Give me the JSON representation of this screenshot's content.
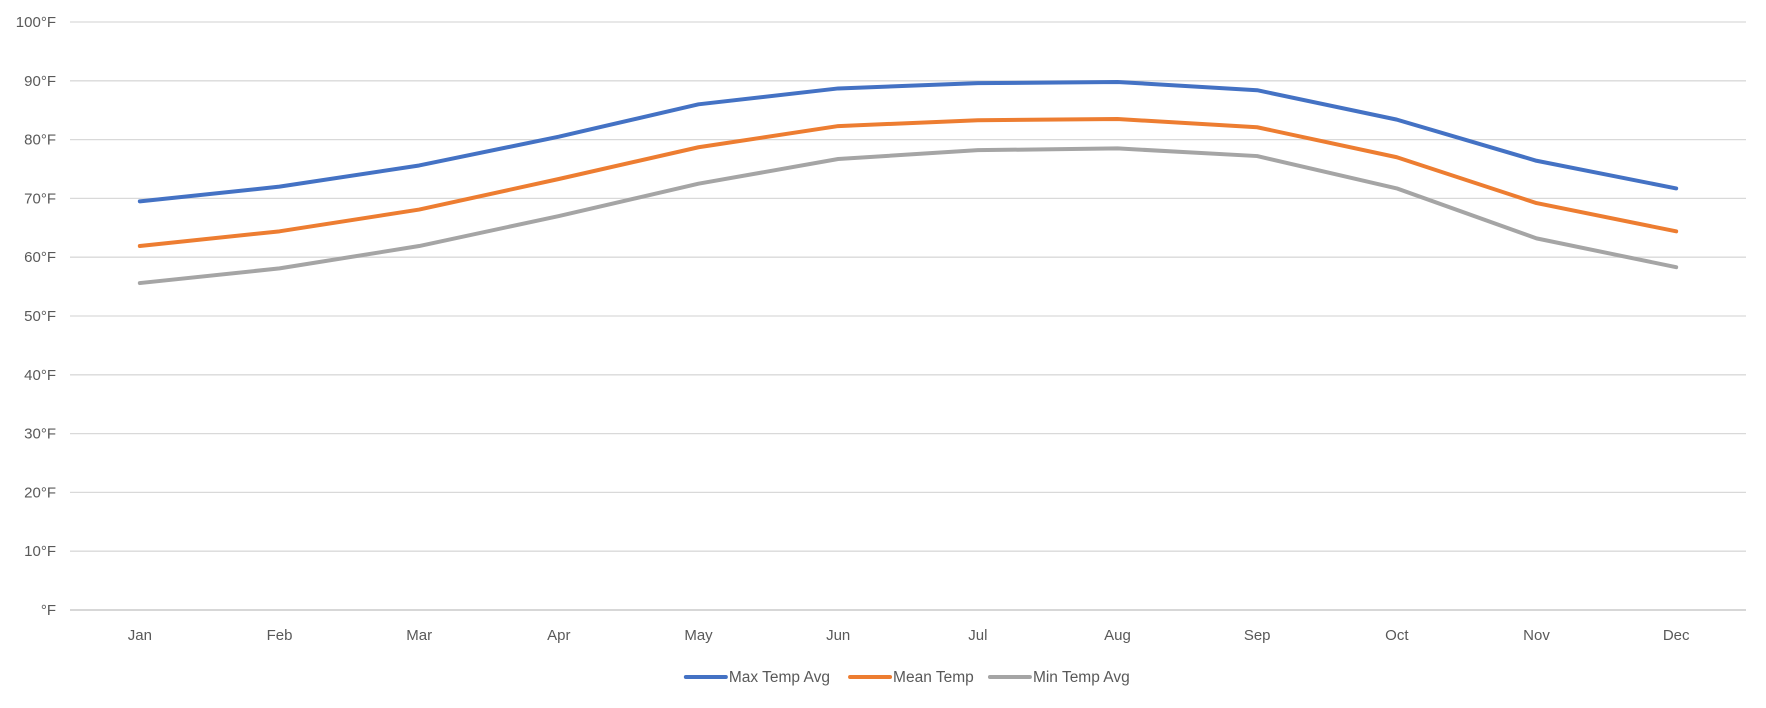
{
  "chart_data": {
    "type": "line",
    "title": "",
    "xlabel": "",
    "ylabel": "",
    "categories": [
      "Jan",
      "Feb",
      "Mar",
      "Apr",
      "May",
      "Jun",
      "Jul",
      "Aug",
      "Sep",
      "Oct",
      "Nov",
      "Dec"
    ],
    "ylim": [
      0,
      100
    ],
    "yticks": [
      0,
      10,
      20,
      30,
      40,
      50,
      60,
      70,
      80,
      90,
      100
    ],
    "ytick_labels": [
      "°F",
      "10°F",
      "20°F",
      "30°F",
      "40°F",
      "50°F",
      "60°F",
      "70°F",
      "80°F",
      "90°F",
      "100°F"
    ],
    "grid": true,
    "legend_position": "bottom",
    "series": [
      {
        "name": "Max Temp Avg",
        "color": "#4472c4",
        "values": [
          69.5,
          72.0,
          75.6,
          80.5,
          86.0,
          88.7,
          89.6,
          89.8,
          88.4,
          83.4,
          76.4,
          71.7
        ]
      },
      {
        "name": "Mean Temp",
        "color": "#ed7d31",
        "values": [
          61.9,
          64.4,
          68.1,
          73.3,
          78.7,
          82.3,
          83.3,
          83.5,
          82.1,
          77.0,
          69.2,
          64.4
        ]
      },
      {
        "name": "Min Temp Avg",
        "color": "#a5a5a5",
        "values": [
          55.6,
          58.1,
          61.9,
          67.0,
          72.5,
          76.7,
          78.2,
          78.5,
          77.2,
          71.7,
          63.2,
          58.3
        ]
      }
    ]
  }
}
